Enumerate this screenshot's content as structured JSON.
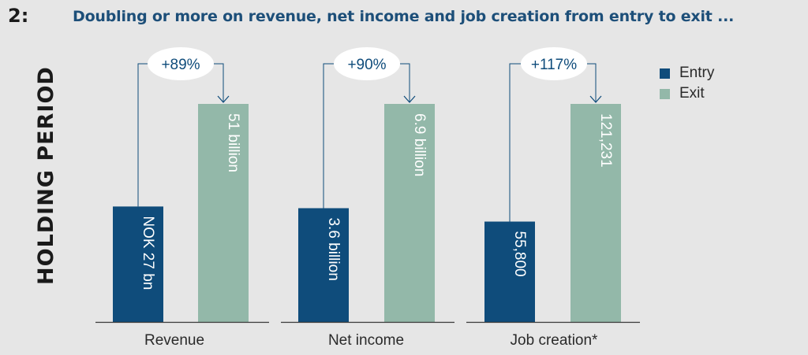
{
  "header": {
    "number": "2:",
    "title": "Doubling or more on revenue, net income and job creation from entry to exit ...",
    "side_label": "HOLDING PERIOD"
  },
  "colors": {
    "entry": "#0f4c7b",
    "exit": "#93b8a9",
    "title": "#1d4f79",
    "axis": "#3a3a3a"
  },
  "chart_data": {
    "type": "bar",
    "categories": [
      "Revenue",
      "Net income",
      "Job creation*"
    ],
    "series": [
      {
        "name": "Entry",
        "values": [
          27,
          3.6,
          55800
        ]
      },
      {
        "name": "Exit",
        "values": [
          51,
          6.9,
          121231
        ]
      }
    ],
    "data_labels": {
      "Entry": [
        "NOK 27 bn",
        "3.6 billion",
        "55,800"
      ],
      "Exit": [
        "51 billion",
        "6.9 billion",
        "121,231"
      ]
    },
    "change_labels": [
      "+89%",
      "+90%",
      "+117%"
    ],
    "legend": "top-right"
  }
}
